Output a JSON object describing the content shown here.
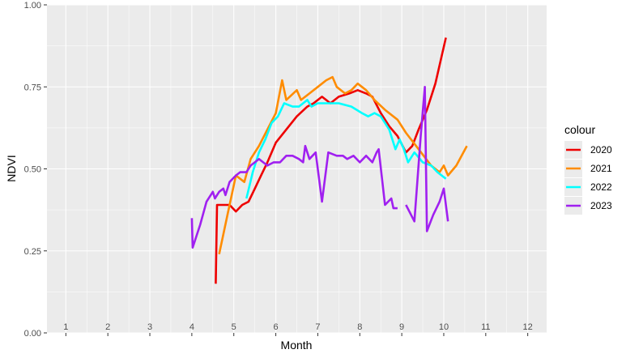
{
  "chart_data": {
    "type": "line",
    "xlabel": "Month",
    "ylabel": "NDVI",
    "xlim": [
      0.55,
      12.45
    ],
    "ylim": [
      0,
      1
    ],
    "x_ticks": [
      1,
      2,
      3,
      4,
      5,
      6,
      7,
      8,
      9,
      10,
      11,
      12
    ],
    "y_ticks": [
      "0.00",
      "0.25",
      "0.50",
      "0.75",
      "1.00"
    ],
    "grid": true,
    "legend_title": "colour",
    "legend_position": "right",
    "series": [
      {
        "name": "2020",
        "color": "#ee0000",
        "points": [
          [
            4.57,
            0.15
          ],
          [
            4.6,
            0.39
          ],
          [
            4.75,
            0.39
          ],
          [
            4.9,
            0.39
          ],
          [
            5.05,
            0.37
          ],
          [
            5.2,
            0.39
          ],
          [
            5.35,
            0.4
          ],
          [
            5.5,
            0.44
          ],
          [
            5.65,
            0.48
          ],
          [
            5.8,
            0.52
          ],
          [
            6.0,
            0.58
          ],
          [
            6.25,
            0.62
          ],
          [
            6.5,
            0.66
          ],
          [
            6.75,
            0.69
          ],
          [
            6.9,
            0.7
          ],
          [
            7.1,
            0.72
          ],
          [
            7.3,
            0.7
          ],
          [
            7.5,
            0.72
          ],
          [
            7.75,
            0.73
          ],
          [
            7.95,
            0.74
          ],
          [
            8.15,
            0.73
          ],
          [
            8.3,
            0.72
          ],
          [
            8.5,
            0.67
          ],
          [
            8.7,
            0.63
          ],
          [
            8.9,
            0.6
          ],
          [
            9.1,
            0.55
          ],
          [
            9.25,
            0.57
          ],
          [
            9.4,
            0.62
          ],
          [
            9.6,
            0.68
          ],
          [
            9.8,
            0.76
          ],
          [
            10.05,
            0.9
          ]
        ]
      },
      {
        "name": "2021",
        "color": "#ff8c00",
        "points": [
          [
            4.65,
            0.24
          ],
          [
            4.85,
            0.36
          ],
          [
            5.05,
            0.48
          ],
          [
            5.25,
            0.46
          ],
          [
            5.4,
            0.53
          ],
          [
            5.6,
            0.57
          ],
          [
            5.8,
            0.62
          ],
          [
            6.0,
            0.67
          ],
          [
            6.15,
            0.77
          ],
          [
            6.25,
            0.71
          ],
          [
            6.5,
            0.74
          ],
          [
            6.6,
            0.71
          ],
          [
            6.8,
            0.73
          ],
          [
            7.0,
            0.75
          ],
          [
            7.2,
            0.77
          ],
          [
            7.35,
            0.78
          ],
          [
            7.45,
            0.75
          ],
          [
            7.65,
            0.73
          ],
          [
            7.8,
            0.74
          ],
          [
            7.95,
            0.76
          ],
          [
            8.15,
            0.74
          ],
          [
            8.35,
            0.71
          ],
          [
            8.6,
            0.68
          ],
          [
            8.9,
            0.65
          ],
          [
            9.1,
            0.61
          ],
          [
            9.4,
            0.56
          ],
          [
            9.7,
            0.51
          ],
          [
            9.9,
            0.49
          ],
          [
            10.0,
            0.51
          ],
          [
            10.1,
            0.48
          ],
          [
            10.3,
            0.51
          ],
          [
            10.55,
            0.57
          ]
        ]
      },
      {
        "name": "2022",
        "color": "#00ffff",
        "points": [
          [
            5.3,
            0.41
          ],
          [
            5.45,
            0.49
          ],
          [
            5.6,
            0.55
          ],
          [
            5.75,
            0.59
          ],
          [
            5.9,
            0.64
          ],
          [
            6.05,
            0.66
          ],
          [
            6.2,
            0.7
          ],
          [
            6.4,
            0.69
          ],
          [
            6.55,
            0.69
          ],
          [
            6.75,
            0.71
          ],
          [
            6.85,
            0.69
          ],
          [
            7.0,
            0.7
          ],
          [
            7.25,
            0.7
          ],
          [
            7.5,
            0.7
          ],
          [
            7.8,
            0.69
          ],
          [
            8.05,
            0.67
          ],
          [
            8.2,
            0.66
          ],
          [
            8.35,
            0.67
          ],
          [
            8.5,
            0.66
          ],
          [
            8.7,
            0.62
          ],
          [
            8.85,
            0.56
          ],
          [
            8.95,
            0.59
          ],
          [
            9.05,
            0.56
          ],
          [
            9.15,
            0.52
          ],
          [
            9.3,
            0.55
          ],
          [
            9.5,
            0.52
          ],
          [
            9.7,
            0.51
          ],
          [
            9.85,
            0.49
          ],
          [
            10.05,
            0.47
          ]
        ]
      },
      {
        "name": "2023",
        "color": "#a020f0",
        "points": [
          [
            4.0,
            0.35
          ],
          [
            4.02,
            0.26
          ],
          [
            4.2,
            0.33
          ],
          [
            4.35,
            0.4
          ],
          [
            4.5,
            0.43
          ],
          [
            4.55,
            0.41
          ],
          [
            4.65,
            0.43
          ],
          [
            4.75,
            0.44
          ],
          [
            4.8,
            0.42
          ],
          [
            4.9,
            0.46
          ],
          [
            5.05,
            0.48
          ],
          [
            5.15,
            0.49
          ],
          [
            5.3,
            0.49
          ],
          [
            5.4,
            0.51
          ],
          [
            5.5,
            0.52
          ],
          [
            5.6,
            0.53
          ],
          [
            5.7,
            0.52
          ],
          [
            5.8,
            0.51
          ],
          [
            5.95,
            0.52
          ],
          [
            6.1,
            0.52
          ],
          [
            6.25,
            0.54
          ],
          [
            6.4,
            0.54
          ],
          [
            6.55,
            0.53
          ],
          [
            6.65,
            0.52
          ],
          [
            6.7,
            0.57
          ],
          [
            6.8,
            0.53
          ],
          [
            6.95,
            0.55
          ],
          [
            7.1,
            0.4
          ],
          [
            7.25,
            0.55
          ],
          [
            7.45,
            0.54
          ],
          [
            7.6,
            0.54
          ],
          [
            7.7,
            0.53
          ],
          [
            7.85,
            0.54
          ],
          [
            8.0,
            0.52
          ],
          [
            8.15,
            0.54
          ],
          [
            8.3,
            0.52
          ],
          [
            8.4,
            0.55
          ],
          [
            8.45,
            0.56
          ],
          [
            8.6,
            0.39
          ],
          [
            8.75,
            0.41
          ],
          [
            8.8,
            0.38
          ],
          [
            8.9,
            0.38
          ],
          [
            null,
            null
          ],
          [
            9.1,
            0.39
          ],
          [
            9.3,
            0.34
          ],
          [
            9.45,
            0.6
          ],
          [
            9.55,
            0.75
          ],
          [
            9.6,
            0.31
          ],
          [
            9.75,
            0.36
          ],
          [
            9.9,
            0.4
          ],
          [
            10.0,
            0.44
          ],
          [
            10.1,
            0.34
          ]
        ]
      }
    ]
  }
}
